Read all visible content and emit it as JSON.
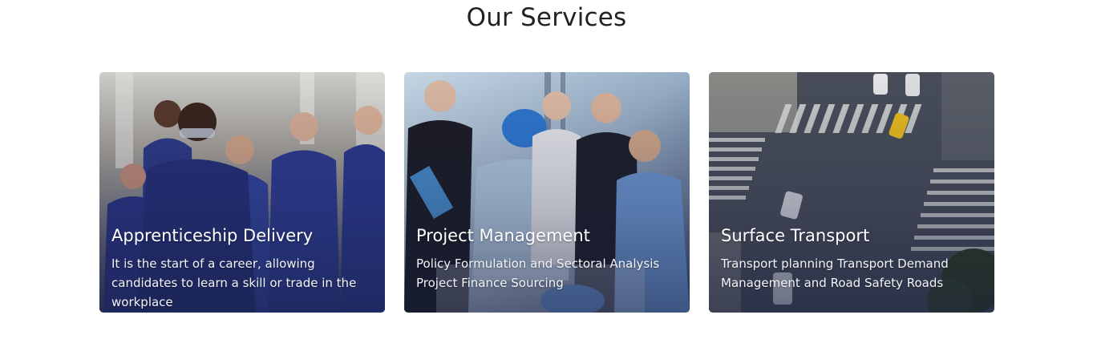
{
  "section": {
    "title": "Our Services"
  },
  "cards": [
    {
      "title": "Apprenticeship Delivery",
      "description": "It is the start of a career, allowing candidates to learn a skill or trade in the workplace"
    },
    {
      "title": "Project Management",
      "description": "Policy Formulation and Sectoral Analysis Project Finance Sourcing"
    },
    {
      "title": "Surface Transport",
      "description": "Transport planning Transport Demand Management and Road Safety Roads"
    }
  ],
  "colors": {
    "title_text": "#222222",
    "card_text": "#ffffff",
    "overlay": "#141c3c"
  }
}
